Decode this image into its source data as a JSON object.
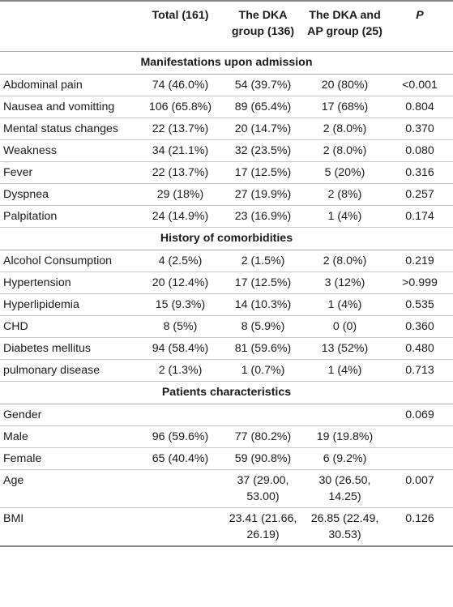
{
  "headers": [
    "",
    "Total (161)",
    "The DKA group (136)",
    "The DKA and AP group (25)",
    "P"
  ],
  "sections": [
    {
      "title": "Manifestations upon admission",
      "rows": [
        [
          "Abdominal pain",
          "74 (46.0%)",
          "54 (39.7%)",
          "20 (80%)",
          "<0.001"
        ],
        [
          "Nausea and vomitting",
          "106 (65.8%)",
          "89 (65.4%)",
          "17 (68%)",
          "0.804"
        ],
        [
          "Mental status changes",
          "22 (13.7%)",
          "20 (14.7%)",
          "2 (8.0%)",
          "0.370"
        ],
        [
          "Weakness",
          "34 (21.1%)",
          "32 (23.5%)",
          "2 (8.0%)",
          "0.080"
        ],
        [
          "Fever",
          "22 (13.7%)",
          "17 (12.5%)",
          "5 (20%)",
          "0.316"
        ],
        [
          "Dyspnea",
          "29 (18%)",
          "27 (19.9%)",
          "2 (8%)",
          "0.257"
        ],
        [
          "Palpitation",
          "24 (14.9%)",
          "23 (16.9%)",
          "1 (4%)",
          "0.174"
        ]
      ]
    },
    {
      "title": "History of comorbidities",
      "rows": [
        [
          "Alcohol Consumption",
          "4 (2.5%)",
          "2 (1.5%)",
          "2 (8.0%)",
          "0.219"
        ],
        [
          "Hypertension",
          "20 (12.4%)",
          "17 (12.5%)",
          "3 (12%)",
          ">0.999"
        ],
        [
          "Hyperlipidemia",
          "15 (9.3%)",
          "14 (10.3%)",
          "1 (4%)",
          "0.535"
        ],
        [
          "CHD",
          "8 (5%)",
          "8 (5.9%)",
          "0 (0)",
          "0.360"
        ],
        [
          "Diabetes mellitus",
          "94 (58.4%)",
          "81 (59.6%)",
          "13 (52%)",
          "0.480"
        ],
        [
          "pulmonary disease",
          "2 (1.3%)",
          "1 (0.7%)",
          "1 (4%)",
          "0.713"
        ]
      ]
    },
    {
      "title": "Patients characteristics",
      "rows": [
        [
          "Gender",
          "",
          "",
          "",
          "0.069"
        ],
        [
          "Male",
          "96 (59.6%)",
          "77 (80.2%)",
          "19 (19.8%)",
          ""
        ],
        [
          "Female",
          "65 (40.4%)",
          "59 (90.8%)",
          "6 (9.2%)",
          ""
        ],
        [
          "Age",
          "",
          "37 (29.00, 53.00)",
          "30 (26.50, 14.25)",
          "0.007"
        ],
        [
          "BMI",
          "",
          "23.41 (21.66, 26.19)",
          "26.85 (22.49, 30.53)",
          "0.126"
        ]
      ]
    }
  ]
}
